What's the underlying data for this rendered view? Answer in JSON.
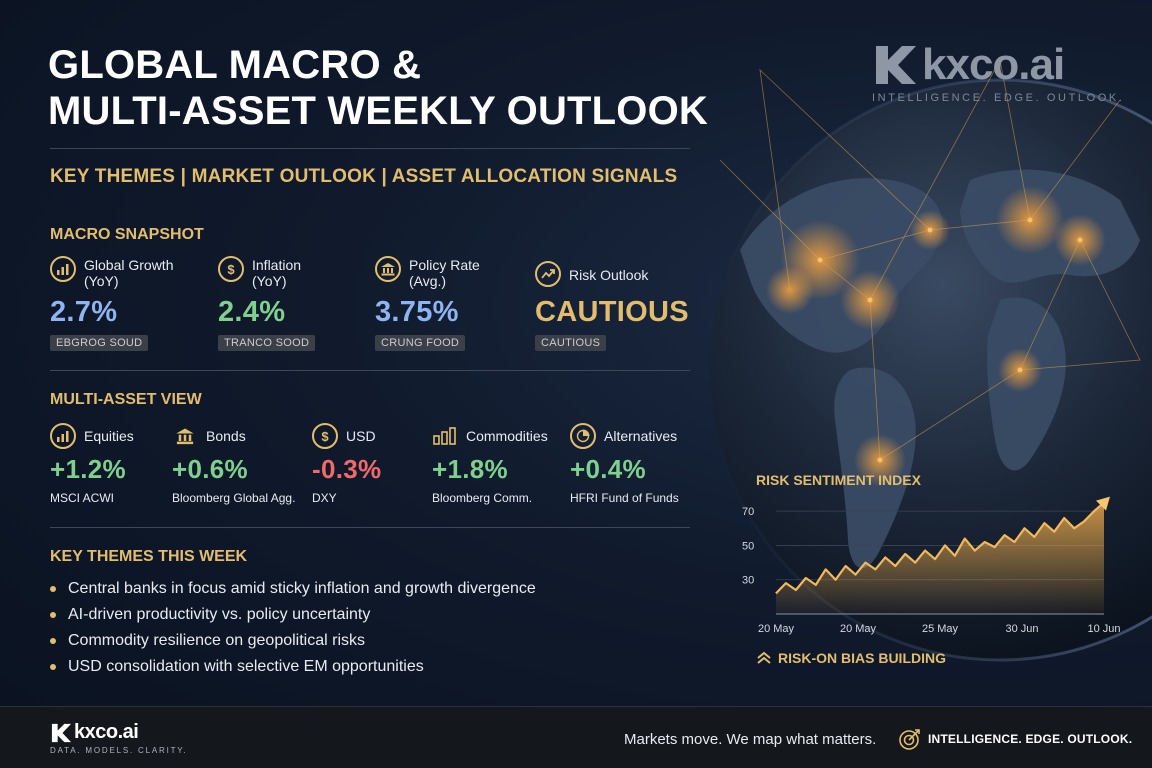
{
  "header": {
    "title_line1": "GLOBAL MACRO &",
    "title_line2": "MULTI-ASSET WEEKLY OUTLOOK",
    "subtitle": "KEY THEMES | MARKET OUTLOOK | ASSET ALLOCATION SIGNALS"
  },
  "brand": {
    "name": "kxco.ai",
    "tagline": "INTELLIGENCE. EDGE. OUTLOOK."
  },
  "macro_snapshot": {
    "title": "MACRO SNAPSHOT",
    "items": [
      {
        "label_line1": "Global Growth",
        "label_line2": "(YoY)",
        "value": "2.7%",
        "badge": "EBGROG SOUD",
        "icon": "bar-chart-icon",
        "color": "#8fb4f2"
      },
      {
        "label_line1": "Inflation",
        "label_line2": "(YoY)",
        "value": "2.4%",
        "badge": "TRANCO SOOD",
        "icon": "dollar-icon",
        "color": "#7fd08e"
      },
      {
        "label_line1": "Policy Rate",
        "label_line2": "(Avg.)",
        "value": "3.75%",
        "badge": "CRUNG FOOD",
        "icon": "bank-icon",
        "color": "#8fb4f2"
      },
      {
        "label_line1": "Risk Outlook",
        "label_line2": "",
        "value": "CAUTIOUS",
        "badge": "CAUTIOUS",
        "icon": "trend-up-icon",
        "color": "#e3bd6e"
      }
    ]
  },
  "multi_asset": {
    "title": "MULTI-ASSET VIEW",
    "items": [
      {
        "label": "Equities",
        "value": "+1.2%",
        "index": "MSCI ACWI",
        "icon": "bar-chart-icon",
        "color": "#7fd08e"
      },
      {
        "label": "Bonds",
        "value": "+0.6%",
        "index": "Bloomberg Global Agg.",
        "icon": "bank-icon",
        "color": "#7fd08e"
      },
      {
        "label": "USD",
        "value": "-0.3%",
        "index": "DXY",
        "icon": "dollar-icon",
        "color": "#f06a6a"
      },
      {
        "label": "Commodities",
        "value": "+1.8%",
        "index": "Bloomberg Comm.",
        "icon": "commodity-bars-icon",
        "color": "#7fd08e"
      },
      {
        "label": "Alternatives",
        "value": "+0.4%",
        "index": "HFRI Fund of Funds",
        "icon": "pie-chart-icon",
        "color": "#7fd08e"
      }
    ]
  },
  "key_themes": {
    "title": "KEY THEMES THIS WEEK",
    "items": [
      "Central banks in focus amid sticky inflation and growth divergence",
      "AI-driven productivity vs. policy uncertainty",
      "Commodity resilience on geopolitical risks",
      "USD consolidation with selective EM opportunities"
    ]
  },
  "chart_data": {
    "type": "area",
    "title": "RISK SENTIMENT INDEX",
    "xlabel": "",
    "ylabel": "",
    "x_tick_labels": [
      "20 May",
      "20 May",
      "25 May",
      "30 Jun",
      "10 Jun"
    ],
    "y_ticks": [
      30,
      50,
      70
    ],
    "ylim": [
      10,
      80
    ],
    "grid": true,
    "values": [
      22,
      28,
      24,
      31,
      27,
      36,
      30,
      38,
      33,
      40,
      36,
      43,
      38,
      45,
      40,
      47,
      42,
      50,
      44,
      54,
      47,
      52,
      49,
      56,
      52,
      60,
      55,
      63,
      58,
      66,
      60,
      64,
      70,
      75
    ],
    "series_color": "#e3a447",
    "annotation": "RISK-ON BIAS BUILDING"
  },
  "footer": {
    "brand_name": "kxco.ai",
    "brand_tagline": "DATA. MODELS. CLARITY.",
    "slogan": "Markets move. We map what matters.",
    "tag": "INTELLIGENCE. EDGE. OUTLOOK."
  }
}
